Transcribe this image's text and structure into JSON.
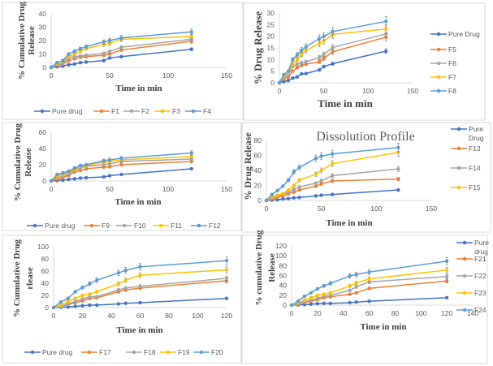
{
  "chart_data": [
    {
      "type": "line",
      "title": "",
      "xlabel": "Time in min",
      "ylabel": [
        "% Cumulative Drug",
        "Release"
      ],
      "xlim": [
        0,
        150
      ],
      "ylim": [
        0,
        40
      ],
      "xticks": [
        0,
        50,
        100,
        150
      ],
      "yticks": [
        0,
        10,
        20,
        30,
        40
      ],
      "legend": "bottom",
      "error_bars": true,
      "x": [
        0,
        5,
        10,
        15,
        20,
        25,
        30,
        45,
        50,
        60,
        120
      ],
      "series": [
        {
          "name": "Pure drug",
          "color": "#4472C4",
          "values": [
            0,
            0.5,
            1,
            2,
            2.5,
            3.5,
            4,
            5,
            7,
            8,
            13.5
          ]
        },
        {
          "name": "F1",
          "color": "#ED7D31",
          "values": [
            0,
            1.5,
            2.5,
            5,
            6.5,
            7.5,
            8,
            9,
            10,
            13,
            19.5
          ]
        },
        {
          "name": "F2",
          "color": "#A5A5A5",
          "values": [
            0,
            2,
            3,
            7,
            8,
            8.5,
            9,
            10.5,
            12,
            15,
            21
          ]
        },
        {
          "name": "F3",
          "color": "#FFC000",
          "values": [
            0,
            3,
            4.5,
            8,
            10,
            12,
            14,
            17,
            18,
            21,
            23
          ]
        },
        {
          "name": "F4",
          "color": "#5B9BD5",
          "values": [
            0,
            3.5,
            5,
            10,
            12,
            14,
            15.5,
            19,
            20,
            22,
            26.5
          ]
        }
      ]
    },
    {
      "type": "line",
      "title": "",
      "xlabel": "Time in min",
      "ylabel": [
        "% Drug Release"
      ],
      "xlim": [
        0,
        150
      ],
      "ylim": [
        0,
        30
      ],
      "xticks": [
        0,
        50,
        100,
        150
      ],
      "yticks": [
        0,
        5,
        10,
        15,
        20,
        25,
        30
      ],
      "legend": "right",
      "error_bars": true,
      "x": [
        0,
        5,
        10,
        15,
        20,
        25,
        30,
        45,
        50,
        60,
        120
      ],
      "series": [
        {
          "name": "Pure Drug",
          "color": "#4472C4",
          "values": [
            0,
            0.5,
            1,
            2,
            2.5,
            3.8,
            4,
            5.5,
            7,
            8.2,
            13.6
          ]
        },
        {
          "name": "F5",
          "color": "#ED7D31",
          "values": [
            0,
            1.5,
            2.5,
            5,
            6.5,
            7.5,
            8,
            9,
            10.5,
            13.3,
            19.6
          ]
        },
        {
          "name": "F6",
          "color": "#A5A5A5",
          "values": [
            0,
            2,
            3.5,
            7,
            8,
            8.5,
            9,
            10.8,
            12.2,
            15.2,
            21
          ]
        },
        {
          "name": "F7",
          "color": "#FFC000",
          "values": [
            0,
            3,
            4.5,
            8,
            10,
            12.2,
            14,
            16.8,
            18,
            20.8,
            23.1
          ]
        },
        {
          "name": "F8",
          "color": "#5B9BD5",
          "values": [
            0,
            3.5,
            5,
            10,
            12,
            14,
            15.5,
            19,
            20,
            22,
            26.4
          ]
        }
      ]
    },
    {
      "type": "line",
      "title": "",
      "xlabel": "Time in min",
      "ylabel": [
        "% Cumulative Drug",
        "Release"
      ],
      "xlim": [
        0,
        150
      ],
      "ylim": [
        0,
        60
      ],
      "xticks": [
        0,
        50,
        100,
        150
      ],
      "yticks": [
        0,
        20,
        40,
        60
      ],
      "legend": "bottom",
      "error_bars": true,
      "x": [
        0,
        5,
        10,
        15,
        20,
        25,
        30,
        45,
        50,
        60,
        120
      ],
      "series": [
        {
          "name": "Pure drug",
          "color": "#4472C4",
          "values": [
            0,
            0.5,
            1,
            2,
            2.5,
            3.5,
            4,
            5,
            6.5,
            8,
            15
          ]
        },
        {
          "name": "F9",
          "color": "#ED7D31",
          "values": [
            0,
            2,
            4,
            7,
            11,
            13,
            15,
            17,
            17.5,
            20,
            24
          ]
        },
        {
          "name": "F10",
          "color": "#A5A5A5",
          "values": [
            0,
            4,
            6,
            9,
            13,
            16,
            18,
            20,
            21,
            24,
            27
          ]
        },
        {
          "name": "F11",
          "color": "#FFC000",
          "values": [
            0,
            6,
            8,
            11,
            14,
            18,
            19,
            23,
            24,
            26,
            30
          ]
        },
        {
          "name": "F12",
          "color": "#5B9BD5",
          "values": [
            0,
            8,
            10,
            12,
            16,
            19,
            20,
            25,
            26,
            28,
            34.5
          ]
        }
      ]
    },
    {
      "type": "line",
      "title": "Dissolution Profile",
      "xlabel": "Time in min",
      "ylabel": [
        "% Drug Release"
      ],
      "xlim": [
        0,
        150
      ],
      "ylim": [
        0,
        80
      ],
      "xticks": [
        0,
        50,
        100,
        150
      ],
      "yticks": [
        0,
        20,
        40,
        60,
        80
      ],
      "legend": "right",
      "error_bars": true,
      "x": [
        0,
        5,
        10,
        15,
        20,
        25,
        30,
        45,
        50,
        60,
        120
      ],
      "series": [
        {
          "name": "Pure Drug",
          "color": "#4472C4",
          "values": [
            0,
            0.5,
            1,
            2,
            2.5,
            3.5,
            4,
            6,
            7,
            8,
            14
          ]
        },
        {
          "name": "F13",
          "color": "#ED7D31",
          "values": [
            0,
            2,
            4,
            6,
            9,
            11,
            14,
            19,
            22,
            26,
            28.5
          ]
        },
        {
          "name": "F14",
          "color": "#A5A5A5",
          "values": [
            0,
            3,
            5,
            8,
            11,
            15,
            18,
            23,
            26,
            33,
            42
          ]
        },
        {
          "name": "F15",
          "color": "#FFC000",
          "values": [
            0,
            5,
            7,
            9,
            14,
            20,
            27,
            35,
            40,
            49,
            64
          ]
        },
        {
          "color": "#5B9BD5",
          "values": [
            0,
            8,
            13,
            19,
            27,
            38,
            44,
            56,
            59,
            62,
            70.5
          ]
        }
      ]
    },
    {
      "type": "line",
      "title": "",
      "xlabel": "Time in min",
      "ylabel": [
        "% Cumulative Drug",
        "rlease"
      ],
      "xlim": [
        0,
        120
      ],
      "ylim": [
        0,
        100
      ],
      "xticks": [
        0,
        20,
        40,
        60,
        80,
        100,
        120
      ],
      "yticks": [
        0,
        20,
        40,
        60,
        80,
        100
      ],
      "legend": "bottom",
      "error_bars": true,
      "x": [
        0,
        5,
        10,
        15,
        20,
        25,
        30,
        45,
        50,
        60,
        120
      ],
      "series": [
        {
          "name": "Pure drug",
          "color": "#4472C4",
          "values": [
            0,
            0.5,
            1,
            2,
            3,
            4,
            4,
            6,
            7,
            8,
            15
          ]
        },
        {
          "name": "F17",
          "color": "#ED7D31",
          "values": [
            0,
            2,
            5,
            8,
            11,
            15,
            16,
            26,
            29,
            32,
            44
          ]
        },
        {
          "name": "F18",
          "color": "#A5A5A5",
          "values": [
            0,
            2,
            6,
            10,
            14,
            18,
            18,
            29,
            32,
            35,
            48
          ]
        },
        {
          "name": "F19",
          "color": "#FFC000",
          "values": [
            0,
            4,
            10,
            15,
            20,
            22,
            26,
            39,
            45,
            53,
            62
          ]
        },
        {
          "name": "F20",
          "color": "#5B9BD5",
          "values": [
            0,
            9,
            15,
            26,
            33,
            39,
            45,
            57,
            61,
            67,
            77
          ]
        }
      ]
    },
    {
      "type": "line",
      "title": "",
      "xlabel": "Time in min",
      "ylabel": [
        "% cumulative Drug",
        "Release"
      ],
      "xlim": [
        0,
        140
      ],
      "ylim": [
        0,
        120
      ],
      "xticks": [
        0,
        20,
        40,
        60,
        80,
        100,
        120,
        140
      ],
      "yticks": [
        0,
        20,
        40,
        60,
        80,
        100,
        120
      ],
      "legend": "right",
      "error_bars": true,
      "x": [
        0,
        5,
        10,
        15,
        20,
        25,
        30,
        45,
        50,
        60,
        120
      ],
      "series": [
        {
          "name": "Pure drug",
          "color": "#4472C4",
          "values": [
            0,
            0.5,
            1,
            2,
            3,
            3.5,
            3.5,
            5,
            6,
            8,
            15
          ]
        },
        {
          "name": "F21",
          "color": "#ED7D31",
          "values": [
            0,
            2,
            5,
            8,
            11,
            15,
            17,
            22,
            25,
            34,
            49
          ]
        },
        {
          "name": "F22",
          "color": "#A5A5A5",
          "values": [
            0,
            3,
            7,
            10,
            14,
            18,
            20,
            30,
            37,
            47,
            58
          ]
        },
        {
          "name": "F23",
          "color": "#FFC000",
          "values": [
            0,
            5,
            10,
            15,
            20,
            22,
            25,
            39,
            45,
            53,
            71
          ]
        },
        {
          "name": "F24",
          "color": "#5B9BD5",
          "values": [
            0,
            8,
            18,
            25,
            33,
            39,
            44,
            59,
            62,
            67,
            89
          ]
        }
      ]
    }
  ]
}
